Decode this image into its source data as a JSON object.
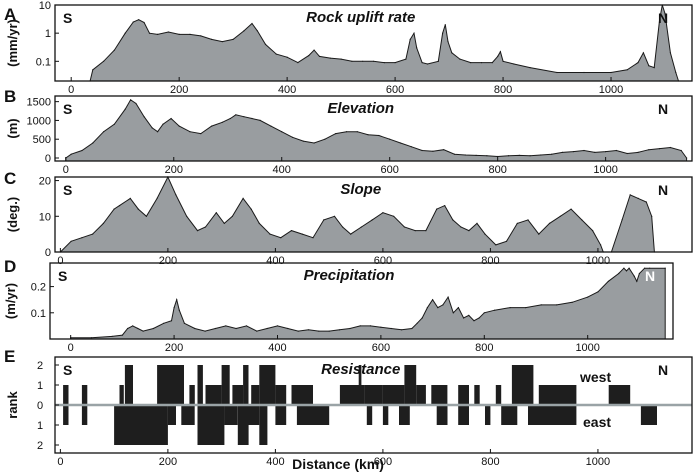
{
  "chart_data": [
    {
      "type": "area",
      "letter": "A",
      "title": "Rock uplift rate",
      "ylabel": "(mm/yr)",
      "yscale": "log",
      "yticks": [
        "10",
        "1",
        "0.1"
      ],
      "ylim": [
        0.02,
        10
      ],
      "xlim": [
        -30,
        1150
      ],
      "xticks": [
        "0",
        "200",
        "400",
        "600",
        "800",
        "1000"
      ],
      "south_label": "S",
      "north_label": "N",
      "fill_color": "#999da0",
      "x": [
        35,
        40,
        60,
        80,
        100,
        115,
        125,
        135,
        145,
        160,
        180,
        200,
        220,
        240,
        260,
        280,
        300,
        320,
        335,
        345,
        360,
        380,
        400,
        420,
        440,
        450,
        460,
        480,
        500,
        520,
        540,
        560,
        580,
        600,
        620,
        628,
        635,
        640,
        650,
        660,
        680,
        688,
        693,
        698,
        705,
        720,
        740,
        760,
        780,
        790,
        795,
        800,
        820,
        850,
        900,
        950,
        1000,
        1030,
        1050,
        1060,
        1070,
        1080,
        1090,
        1095,
        1100,
        1110,
        1120,
        1125
      ],
      "y": [
        0.02,
        0.05,
        0.1,
        0.25,
        1,
        2.5,
        3,
        2.4,
        1,
        0.9,
        1.1,
        0.9,
        0.9,
        0.8,
        0.6,
        0.5,
        0.6,
        1.2,
        2.2,
        1.2,
        0.4,
        0.18,
        0.14,
        0.09,
        0.16,
        0.25,
        0.15,
        0.13,
        0.12,
        0.1,
        0.1,
        0.1,
        0.09,
        0.09,
        0.12,
        0.6,
        1.0,
        0.3,
        0.09,
        0.08,
        0.1,
        1.0,
        2.0,
        0.5,
        0.2,
        0.12,
        0.09,
        0.09,
        0.09,
        0.15,
        0.22,
        0.1,
        0.08,
        0.06,
        0.04,
        0.04,
        0.04,
        0.05,
        0.09,
        0.2,
        0.07,
        0.06,
        3,
        10,
        5,
        0.2,
        0.04,
        0.02
      ]
    },
    {
      "type": "area",
      "letter": "B",
      "title": "Elevation",
      "ylabel": "(m)",
      "yticks": [
        "1500",
        "1000",
        "500",
        "0"
      ],
      "ylim": [
        -80,
        1650
      ],
      "xlim": [
        -20,
        1160
      ],
      "xticks": [
        "0",
        "200",
        "400",
        "600",
        "800",
        "1000"
      ],
      "south_label": "S",
      "north_label": "N",
      "fill_color": "#999da0",
      "x": [
        0,
        10,
        30,
        50,
        70,
        90,
        110,
        120,
        130,
        145,
        160,
        170,
        180,
        195,
        210,
        230,
        250,
        270,
        290,
        305,
        315,
        330,
        345,
        360,
        380,
        400,
        420,
        440,
        460,
        480,
        500,
        520,
        540,
        560,
        580,
        600,
        620,
        640,
        660,
        680,
        700,
        720,
        740,
        760,
        780,
        800,
        820,
        840,
        860,
        880,
        900,
        920,
        940,
        960,
        980,
        1000,
        1020,
        1040,
        1060,
        1080,
        1100,
        1120,
        1140,
        1150
      ],
      "y": [
        0,
        100,
        200,
        400,
        700,
        900,
        1300,
        1550,
        1450,
        1100,
        800,
        700,
        900,
        1050,
        850,
        700,
        650,
        850,
        950,
        1050,
        1150,
        1100,
        1050,
        1000,
        850,
        700,
        550,
        450,
        400,
        500,
        650,
        700,
        700,
        620,
        600,
        500,
        400,
        300,
        200,
        180,
        220,
        100,
        80,
        70,
        60,
        40,
        60,
        70,
        60,
        80,
        100,
        150,
        170,
        200,
        150,
        170,
        200,
        120,
        150,
        220,
        250,
        280,
        200,
        0
      ]
    },
    {
      "type": "area",
      "letter": "C",
      "title": "Slope",
      "ylabel": "(deg.)",
      "yticks": [
        "20",
        "10",
        "0"
      ],
      "ylim": [
        0,
        21
      ],
      "xlim": [
        -10,
        1175
      ],
      "xticks": [
        "0",
        "200",
        "400",
        "600",
        "800",
        "1000"
      ],
      "south_label": "S",
      "north_label": "N",
      "fill_color": "#999da0",
      "x": [
        0,
        20,
        40,
        60,
        80,
        100,
        110,
        130,
        145,
        160,
        180,
        200,
        215,
        235,
        255,
        270,
        290,
        305,
        320,
        340,
        355,
        370,
        390,
        410,
        430,
        450,
        470,
        490,
        510,
        525,
        540,
        560,
        580,
        600,
        620,
        640,
        660,
        680,
        700,
        715,
        730,
        745,
        760,
        775,
        790,
        810,
        830,
        850,
        870,
        890,
        910,
        930,
        950,
        970,
        990,
        1005,
        1010,
        1025,
        1045,
        1060,
        1075,
        1090,
        1100,
        1105
      ],
      "y": [
        0,
        3,
        4,
        5,
        8,
        12,
        13,
        15,
        12,
        10,
        15,
        21,
        16,
        10,
        6,
        7,
        11,
        8,
        10,
        15,
        12,
        8,
        5,
        4,
        6,
        5,
        4,
        9,
        10,
        7,
        5,
        7,
        9,
        11,
        10,
        7,
        6,
        6,
        12,
        13,
        9,
        7,
        6,
        8,
        5,
        2,
        3,
        8,
        9,
        5,
        8,
        10,
        12,
        9,
        6,
        2,
        0,
        0,
        9,
        16,
        15,
        14,
        10,
        0
      ]
    },
    {
      "type": "area",
      "letter": "D",
      "title": "Precipitation",
      "ylabel": "(m/yr)",
      "yticks": [
        "0.2",
        "0.1"
      ],
      "ylim": [
        0,
        0.29
      ],
      "xlim": [
        -40,
        1165
      ],
      "xticks": [
        "0",
        "200",
        "400",
        "600",
        "800",
        "1000"
      ],
      "south_label": "S",
      "north_label": "N",
      "fill_color": "#999da0",
      "x": [
        0,
        40,
        80,
        100,
        110,
        120,
        130,
        140,
        160,
        180,
        195,
        200,
        205,
        210,
        220,
        240,
        260,
        280,
        300,
        320,
        340,
        360,
        380,
        400,
        420,
        440,
        460,
        480,
        500,
        520,
        540,
        560,
        580,
        600,
        620,
        640,
        660,
        670,
        680,
        690,
        700,
        710,
        720,
        730,
        740,
        750,
        760,
        770,
        780,
        790,
        800,
        820,
        850,
        880,
        910,
        940,
        970,
        1000,
        1020,
        1040,
        1060,
        1070,
        1075,
        1080,
        1090,
        1095,
        1100,
        1110,
        1120,
        1150
      ],
      "y": [
        0.005,
        0.005,
        0.01,
        0.015,
        0.04,
        0.05,
        0.04,
        0.03,
        0.04,
        0.06,
        0.07,
        0.12,
        0.15,
        0.11,
        0.06,
        0.04,
        0.03,
        0.04,
        0.05,
        0.04,
        0.05,
        0.03,
        0.04,
        0.05,
        0.04,
        0.03,
        0.035,
        0.03,
        0.03,
        0.035,
        0.04,
        0.05,
        0.05,
        0.045,
        0.04,
        0.035,
        0.04,
        0.06,
        0.08,
        0.12,
        0.15,
        0.12,
        0.13,
        0.16,
        0.1,
        0.12,
        0.08,
        0.09,
        0.07,
        0.08,
        0.1,
        0.11,
        0.12,
        0.12,
        0.13,
        0.13,
        0.14,
        0.16,
        0.18,
        0.22,
        0.25,
        0.27,
        0.26,
        0.27,
        0.24,
        0.22,
        0.25,
        0.27,
        0.27,
        0.27
      ]
    },
    {
      "type": "bar",
      "letter": "E",
      "title": "Resistance",
      "ylabel": "rank",
      "xlabel": "Distance (km)",
      "ylim": [
        -2.4,
        2.4
      ],
      "ytick_labels": [
        "2",
        "1",
        "0",
        "1",
        "2"
      ],
      "yticks": [
        2,
        1,
        0,
        -1,
        -2
      ],
      "xlim": [
        -10,
        1175
      ],
      "xticks": [
        "0",
        "200",
        "400",
        "600",
        "800",
        "1000"
      ],
      "south_label": "S",
      "north_label": "N",
      "west_label": "west",
      "east_label": "east",
      "bar_color": "#1e1e1e",
      "axis_line_color": "#9aa3a6",
      "west_segments": [
        [
          5,
          15,
          1
        ],
        [
          40,
          50,
          1
        ],
        [
          110,
          118,
          1
        ],
        [
          120,
          135,
          2
        ],
        [
          180,
          230,
          2
        ],
        [
          240,
          250,
          1
        ],
        [
          255,
          265,
          2
        ],
        [
          270,
          300,
          1
        ],
        [
          300,
          315,
          2
        ],
        [
          320,
          340,
          1
        ],
        [
          340,
          350,
          2
        ],
        [
          355,
          370,
          1
        ],
        [
          370,
          400,
          2
        ],
        [
          400,
          420,
          1
        ],
        [
          430,
          470,
          1
        ],
        [
          555,
          560,
          2
        ],
        [
          520,
          565,
          1
        ],
        [
          565,
          600,
          1
        ],
        [
          600,
          640,
          1
        ],
        [
          640,
          662,
          2
        ],
        [
          662,
          680,
          1
        ],
        [
          690,
          720,
          1
        ],
        [
          740,
          760,
          1
        ],
        [
          770,
          780,
          1
        ],
        [
          810,
          820,
          1
        ],
        [
          840,
          880,
          2
        ],
        [
          890,
          960,
          1
        ],
        [
          1020,
          1060,
          1
        ]
      ],
      "east_segments": [
        [
          5,
          15,
          1
        ],
        [
          40,
          50,
          1
        ],
        [
          100,
          200,
          2
        ],
        [
          200,
          215,
          1
        ],
        [
          225,
          250,
          1
        ],
        [
          255,
          305,
          2
        ],
        [
          305,
          330,
          1
        ],
        [
          330,
          350,
          2
        ],
        [
          350,
          370,
          1
        ],
        [
          370,
          385,
          2
        ],
        [
          400,
          420,
          1
        ],
        [
          440,
          500,
          1
        ],
        [
          570,
          580,
          1
        ],
        [
          600,
          610,
          1
        ],
        [
          630,
          650,
          1
        ],
        [
          700,
          720,
          1
        ],
        [
          740,
          760,
          1
        ],
        [
          790,
          800,
          1
        ],
        [
          820,
          850,
          1
        ],
        [
          870,
          960,
          1
        ],
        [
          1080,
          1110,
          1
        ]
      ]
    }
  ]
}
